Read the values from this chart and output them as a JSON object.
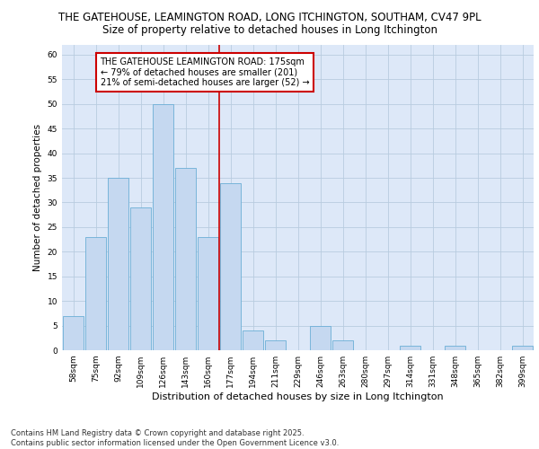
{
  "title1": "THE GATEHOUSE, LEAMINGTON ROAD, LONG ITCHINGTON, SOUTHAM, CV47 9PL",
  "title2": "Size of property relative to detached houses in Long Itchington",
  "xlabel": "Distribution of detached houses by size in Long Itchington",
  "ylabel": "Number of detached properties",
  "categories": [
    "58sqm",
    "75sqm",
    "92sqm",
    "109sqm",
    "126sqm",
    "143sqm",
    "160sqm",
    "177sqm",
    "194sqm",
    "211sqm",
    "229sqm",
    "246sqm",
    "263sqm",
    "280sqm",
    "297sqm",
    "314sqm",
    "331sqm",
    "348sqm",
    "365sqm",
    "382sqm",
    "399sqm"
  ],
  "values": [
    7,
    23,
    35,
    29,
    50,
    37,
    23,
    34,
    4,
    2,
    0,
    5,
    2,
    0,
    0,
    1,
    0,
    1,
    0,
    0,
    1
  ],
  "bar_color": "#c5d8f0",
  "bar_edge_color": "#6baed6",
  "vline_color": "#cc0000",
  "annotation_text": "THE GATEHOUSE LEAMINGTON ROAD: 175sqm\n← 79% of detached houses are smaller (201)\n21% of semi-detached houses are larger (52) →",
  "annotation_box_color": "#ffffff",
  "annotation_box_edge_color": "#cc0000",
  "ylim": [
    0,
    62
  ],
  "yticks": [
    0,
    5,
    10,
    15,
    20,
    25,
    30,
    35,
    40,
    45,
    50,
    55,
    60
  ],
  "background_color": "#dde8f8",
  "footer": "Contains HM Land Registry data © Crown copyright and database right 2025.\nContains public sector information licensed under the Open Government Licence v3.0.",
  "title1_fontsize": 8.5,
  "title2_fontsize": 8.5,
  "xlabel_fontsize": 8,
  "ylabel_fontsize": 7.5,
  "tick_fontsize": 6.5,
  "annotation_fontsize": 7,
  "footer_fontsize": 6
}
